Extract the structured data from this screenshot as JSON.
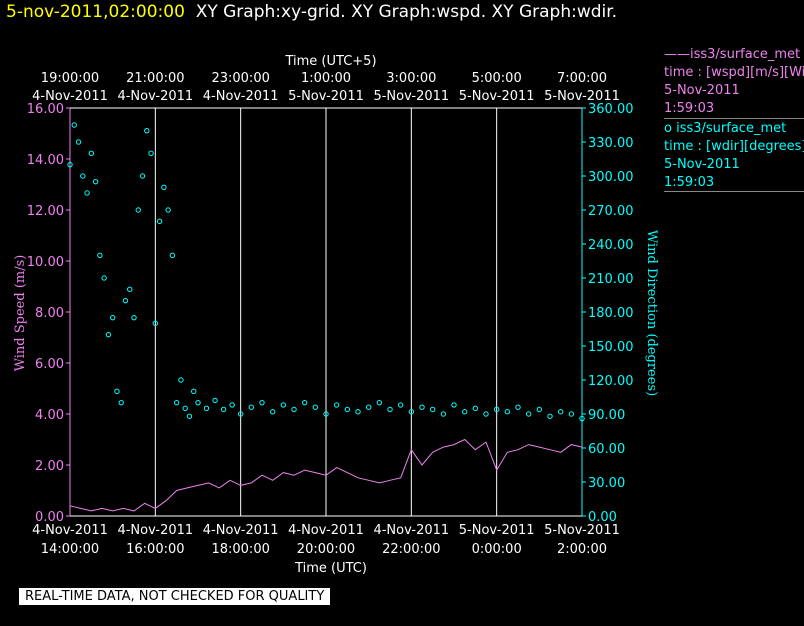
{
  "header": {
    "timestamp": "5-nov-2011,02:00:00",
    "titles": "XY Graph:xy-grid.  XY Graph:wspd.  XY Graph:wdir."
  },
  "legend": [
    {
      "line1": "——iss3/surface_met",
      "line2": "time : [wspd][m/s][Wind",
      "line3": "5-Nov-2011",
      "line4": "1:59:03",
      "color": "#ee82ee"
    },
    {
      "line1": "o  iss3/surface_met",
      "line2": "time : [wdir][degrees][W",
      "line3": "5-Nov-2011",
      "line4": "1:59:03",
      "color": "#00ffff"
    }
  ],
  "footer": "REAL-TIME DATA, NOT CHECKED FOR QUALITY",
  "chart_data": {
    "type": "line",
    "x_bottom_label": "Time (UTC)",
    "x_top_label": "Time (UTC+5)",
    "bottom_ticks": [
      {
        "date": "4-Nov-2011",
        "time": "14:00:00"
      },
      {
        "date": "4-Nov-2011",
        "time": "16:00:00"
      },
      {
        "date": "4-Nov-2011",
        "time": "18:00:00"
      },
      {
        "date": "4-Nov-2011",
        "time": "20:00:00"
      },
      {
        "date": "4-Nov-2011",
        "time": "22:00:00"
      },
      {
        "date": "5-Nov-2011",
        "time": "0:00:00"
      },
      {
        "date": "5-Nov-2011",
        "time": "2:00:00"
      }
    ],
    "top_ticks": [
      {
        "time": "19:00:00",
        "date": "4-Nov-2011"
      },
      {
        "time": "21:00:00",
        "date": "4-Nov-2011"
      },
      {
        "time": "23:00:00",
        "date": "4-Nov-2011"
      },
      {
        "time": "1:00:00",
        "date": "5-Nov-2011"
      },
      {
        "time": "3:00:00",
        "date": "5-Nov-2011"
      },
      {
        "time": "5:00:00",
        "date": "5-Nov-2011"
      },
      {
        "time": "7:00:00",
        "date": "5-Nov-2011"
      }
    ],
    "xlim_hours": [
      14,
      26
    ],
    "y_left": {
      "label": "Wind Speed (m/s)",
      "ticks": [
        "0.00",
        "2.00",
        "4.00",
        "6.00",
        "8.00",
        "10.00",
        "12.00",
        "14.00",
        "16.00"
      ],
      "lim": [
        0,
        16
      ],
      "color": "#ee82ee"
    },
    "y_right": {
      "label": "Wind Direction (degrees)",
      "ticks": [
        "0.00",
        "30.00",
        "60.00",
        "90.00",
        "120.00",
        "150.00",
        "180.00",
        "210.00",
        "240.00",
        "270.00",
        "300.00",
        "330.00",
        "360.00"
      ],
      "lim": [
        0,
        360
      ],
      "color": "#00ffff"
    },
    "grid": "vertical",
    "series": [
      {
        "name": "iss3/surface_met time : [wspd][m/s]",
        "style": "line",
        "color": "#ee82ee",
        "x_hours": [
          14.0,
          14.25,
          14.5,
          14.75,
          15.0,
          15.25,
          15.5,
          15.75,
          16.0,
          16.25,
          16.5,
          16.75,
          17.0,
          17.25,
          17.5,
          17.75,
          18.0,
          18.25,
          18.5,
          18.75,
          19.0,
          19.25,
          19.5,
          19.75,
          20.0,
          20.25,
          20.5,
          20.75,
          21.0,
          21.25,
          21.5,
          21.75,
          22.0,
          22.25,
          22.5,
          22.75,
          23.0,
          23.25,
          23.5,
          23.75,
          24.0,
          24.25,
          24.5,
          24.75,
          25.0,
          25.25,
          25.5,
          25.75,
          26.0
        ],
        "values": [
          0.4,
          0.3,
          0.2,
          0.3,
          0.2,
          0.3,
          0.2,
          0.5,
          0.3,
          0.6,
          1.0,
          1.1,
          1.2,
          1.3,
          1.1,
          1.4,
          1.2,
          1.3,
          1.6,
          1.4,
          1.7,
          1.6,
          1.8,
          1.7,
          1.6,
          1.9,
          1.7,
          1.5,
          1.4,
          1.3,
          1.4,
          1.5,
          2.6,
          2.0,
          2.5,
          2.7,
          2.8,
          3.0,
          2.6,
          2.9,
          1.8,
          2.5,
          2.6,
          2.8,
          2.7,
          2.6,
          2.5,
          2.8,
          2.7
        ]
      },
      {
        "name": "iss3/surface_met time : [wdir][degrees]",
        "style": "scatter",
        "color": "#00ffff",
        "x_hours": [
          14.0,
          14.1,
          14.2,
          14.3,
          14.4,
          14.5,
          14.6,
          14.7,
          14.8,
          14.9,
          15.0,
          15.1,
          15.2,
          15.3,
          15.4,
          15.5,
          15.6,
          15.7,
          15.8,
          15.9,
          16.0,
          16.1,
          16.2,
          16.3,
          16.4,
          16.5,
          16.6,
          16.7,
          16.8,
          16.9,
          17.0,
          17.2,
          17.4,
          17.6,
          17.8,
          18.0,
          18.25,
          18.5,
          18.75,
          19.0,
          19.25,
          19.5,
          19.75,
          20.0,
          20.25,
          20.5,
          20.75,
          21.0,
          21.25,
          21.5,
          21.75,
          22.0,
          22.25,
          22.5,
          22.75,
          23.0,
          23.25,
          23.5,
          23.75,
          24.0,
          24.25,
          24.5,
          24.75,
          25.0,
          25.25,
          25.5,
          25.75,
          26.0
        ],
        "values": [
          310,
          345,
          330,
          300,
          285,
          320,
          295,
          230,
          210,
          160,
          175,
          110,
          100,
          190,
          200,
          175,
          270,
          300,
          340,
          320,
          170,
          260,
          290,
          270,
          230,
          100,
          120,
          95,
          88,
          110,
          100,
          95,
          102,
          94,
          98,
          90,
          96,
          100,
          92,
          98,
          94,
          100,
          96,
          90,
          98,
          94,
          92,
          96,
          100,
          94,
          98,
          92,
          96,
          94,
          90,
          98,
          92,
          95,
          90,
          94,
          92,
          96,
          90,
          94,
          88,
          92,
          90,
          86
        ]
      }
    ]
  }
}
